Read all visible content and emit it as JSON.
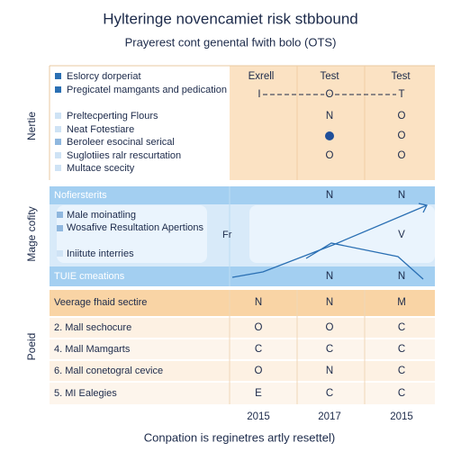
{
  "header": {
    "title": "Hylteringe novencamiet risk stbbound",
    "subtitle": "Prayerest cont genental fwith bolo (OTS)"
  },
  "sections": [
    {
      "label": "Nertie",
      "columns": [
        "Exrell",
        "Test",
        "Test"
      ],
      "items": [
        "Eslorcy dorperiat",
        "Pregicatel mamgants and pedication",
        "Preltecperting Flours",
        "Neat Fotestiare",
        "Beroleer esocinal serical",
        "Suglotiies ralr rescurtation",
        "Multace scecity"
      ],
      "cells": [
        [
          "I",
          "O",
          "T"
        ],
        [
          "N",
          "O"
        ],
        [
          "O"
        ],
        [
          "O",
          "O"
        ]
      ]
    },
    {
      "label": "Mage cofity",
      "heading": "Nofiersterits",
      "heading_cells": [
        "N",
        "N"
      ],
      "items": [
        "Male moinatling",
        "Wosafive Resultation Apertions",
        "Iniitute interries"
      ],
      "marks": [
        "Fr",
        "V"
      ],
      "footer": "TUIE cmeations",
      "footer_cells": [
        "N",
        "N"
      ]
    },
    {
      "label": "Poeid",
      "rows": [
        {
          "label": "Veerage fhaid sectire",
          "cells": [
            "N",
            "N",
            "M"
          ]
        },
        {
          "label": "2. Mall sechocure",
          "cells": [
            "O",
            "O",
            "C"
          ]
        },
        {
          "label": "4. Mall Mamgarts",
          "cells": [
            "C",
            "C",
            "C"
          ]
        },
        {
          "label": "6. Mall conetogral cevice",
          "cells": [
            "O",
            "N",
            "C"
          ]
        },
        {
          "label": "5. MI Ealegies",
          "cells": [
            "E",
            "C",
            "C"
          ]
        }
      ]
    }
  ],
  "footer": {
    "years": [
      "2015",
      "2017",
      "2015"
    ],
    "caption": "Conpation is reginetres artly resettel)"
  }
}
